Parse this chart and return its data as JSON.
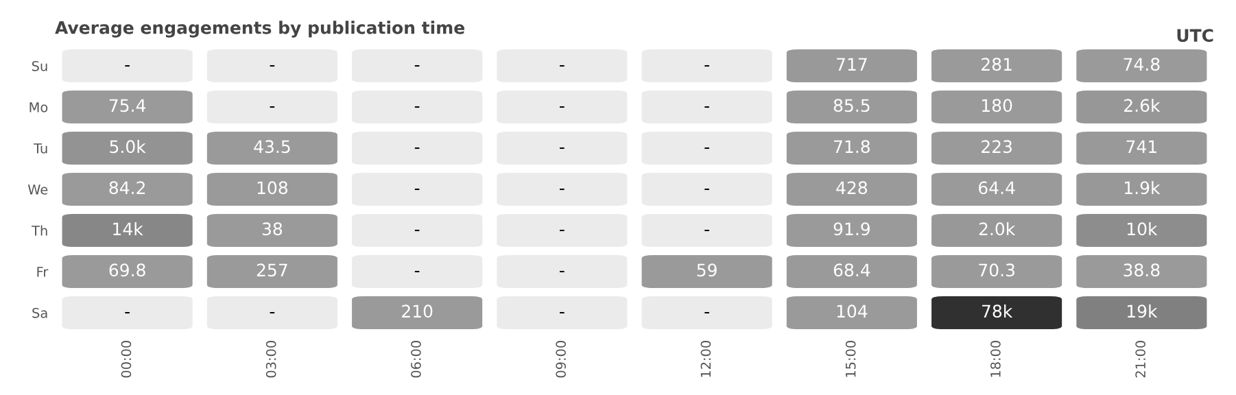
{
  "chart_data": {
    "type": "heatmap",
    "title": "Average engagements by publication time",
    "annotations": [
      "UTC"
    ],
    "categories": [
      "00:00",
      "03:00",
      "06:00",
      "09:00",
      "12:00",
      "15:00",
      "18:00",
      "21:00"
    ],
    "y_categories": [
      "Su",
      "Mo",
      "Tu",
      "We",
      "Th",
      "Fr",
      "Sa"
    ],
    "cells": [
      [
        null,
        null,
        null,
        null,
        null,
        717,
        281,
        74.8
      ],
      [
        75.4,
        null,
        null,
        null,
        null,
        85.5,
        180,
        2600
      ],
      [
        5000,
        43.5,
        null,
        null,
        null,
        71.8,
        223,
        741
      ],
      [
        84.2,
        108,
        null,
        null,
        null,
        428,
        64.4,
        1900
      ],
      [
        14000,
        38,
        null,
        null,
        null,
        91.9,
        2000,
        10000
      ],
      [
        69.8,
        257,
        null,
        null,
        59,
        68.4,
        70.3,
        38.8
      ],
      [
        null,
        null,
        210,
        null,
        null,
        104,
        78000,
        19000
      ]
    ],
    "cell_labels": [
      [
        "-",
        "-",
        "-",
        "-",
        "-",
        "717",
        "281",
        "74.8"
      ],
      [
        "75.4",
        "-",
        "-",
        "-",
        "-",
        "85.5",
        "180",
        "2.6k"
      ],
      [
        "5.0k",
        "43.5",
        "-",
        "-",
        "-",
        "71.8",
        "223",
        "741"
      ],
      [
        "84.2",
        "108",
        "-",
        "-",
        "-",
        "428",
        "64.4",
        "1.9k"
      ],
      [
        "14k",
        "38",
        "-",
        "-",
        "-",
        "91.9",
        "2.0k",
        "10k"
      ],
      [
        "69.8",
        "257",
        "-",
        "-",
        "59",
        "68.4",
        "70.3",
        "38.8"
      ],
      [
        "-",
        "-",
        "210",
        "-",
        "-",
        "104",
        "78k",
        "19k"
      ]
    ]
  }
}
